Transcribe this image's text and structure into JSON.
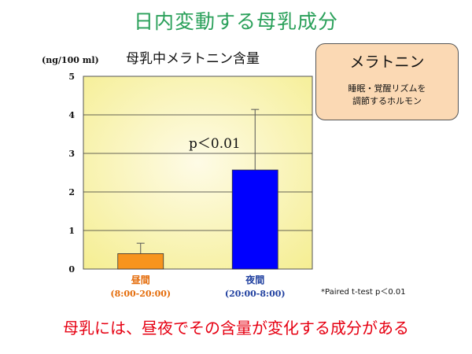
{
  "slide_title": "日内変動する母乳成分",
  "chart_title": "母乳中メラトニン含量",
  "info_box": {
    "title": "メラトニン",
    "description_line1": "睡眠・覚醒リズムを",
    "description_line2": "調節するホルモン"
  },
  "annotation": "p＜0.01",
  "footnote": "*Paired t-test p＜0.01",
  "conclusion": "母乳には、昼夜でその含量が変化する成分がある",
  "colors": {
    "bar_day": "#f7941d",
    "bar_night": "#0000ff",
    "label_day": "#e46c0a",
    "label_night": "#1f3f9f",
    "plot_bg_center": "#fefbe6",
    "plot_bg_edge": "#f5ee91"
  },
  "chart_data": {
    "type": "bar",
    "ylabel": "(ng/100 ml)",
    "ylim": [
      0,
      5
    ],
    "yticks": [
      0,
      1,
      2,
      3,
      4,
      5
    ],
    "grid": true,
    "categories": [
      {
        "label": "昼間",
        "sublabel": "(8:00-20:00)",
        "value": 0.4,
        "error": 0.27
      },
      {
        "label": "夜間",
        "sublabel": "(20:00-8:00)",
        "value": 2.57,
        "error": 1.57
      }
    ]
  }
}
